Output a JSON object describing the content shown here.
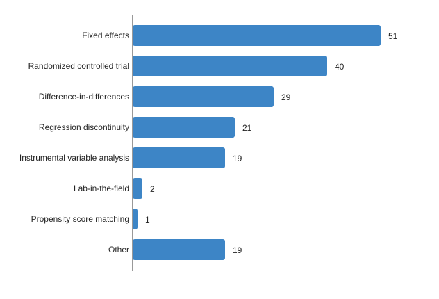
{
  "chart_data": {
    "type": "bar",
    "orientation": "horizontal",
    "title": "",
    "xlabel": "",
    "ylabel": "",
    "categories": [
      "Fixed effects",
      "Randomized controlled trial",
      "Difference-in-differences",
      "Regression discontinuity",
      "Instrumental variable analysis",
      "Lab-in-the-field",
      "Propensity score matching",
      "Other"
    ],
    "values": [
      51,
      40,
      29,
      21,
      19,
      2,
      1,
      19
    ],
    "xlim": [
      0,
      60
    ],
    "grid": false,
    "data_labels": true,
    "bar_color": "#3d85c6"
  }
}
